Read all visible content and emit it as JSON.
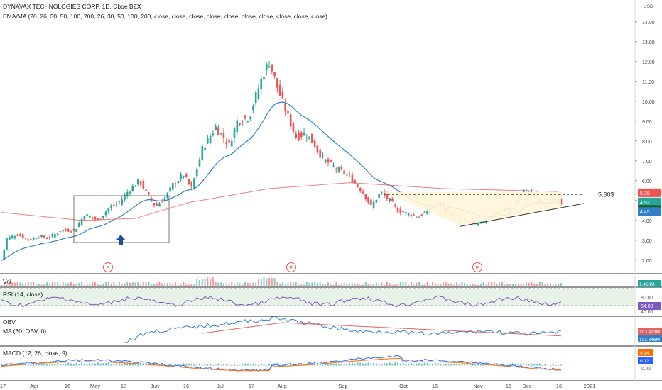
{
  "header": {
    "title": "DYNAVAX TECHNOLOGIES CORP, 1D, Cboe BZX",
    "indicator": "EMA/MA (20, 26, 30, 50, 100, 200, 26, 30, 50, 100, 200, close, close, close, close, close, close, close, close, close, close)",
    "currency": "USD"
  },
  "colors": {
    "up": "#26a69a",
    "down": "#ef5350",
    "ema": "#2f80c8",
    "ma200": "#e06262",
    "rsi": "#7e57c2",
    "macd": "#2962ff",
    "signal": "#ff6d00",
    "band": "#e8f3e8"
  },
  "chart_data": [
    {
      "type": "candlestick",
      "name": "price",
      "y_ticks": [
        "2.00",
        "3.00",
        "4.00",
        "5.00",
        "6.00",
        "7.00",
        "8.00",
        "9.00",
        "10.00",
        "11.00",
        "12.00",
        "13.00",
        "14.00"
      ],
      "ylim": [
        1.6,
        14.6
      ],
      "x_ticks": [
        "17",
        "Apr",
        "16",
        "May",
        "18",
        "Jun",
        "16",
        "Jul",
        "17",
        "Aug",
        "Sep",
        "Oct",
        "16",
        "Nov",
        "16",
        "Dec",
        "16",
        "2021"
      ],
      "price_labels": [
        {
          "text": "5.39",
          "value": 5.39,
          "color": "#ef5350"
        },
        {
          "text": "4.93",
          "value": 4.93,
          "color": "#26a69a"
        },
        {
          "text": "01:15:01",
          "value": 4.7,
          "color": "#1b5e20"
        },
        {
          "text": "4.45",
          "value": 4.45,
          "color": "#2f80c8"
        }
      ],
      "annotations": {
        "resistance_label": "5.30$",
        "resistance_value": 5.3,
        "earnings_marker": "E"
      },
      "ohlc_note": "Daily candles, approx values read from chart"
    },
    {
      "type": "bar",
      "name": "volume",
      "label": "Vol",
      "last_label": "1.468M"
    },
    {
      "type": "line",
      "name": "rsi",
      "label": "RSI (14, close)",
      "y_ticks": [
        "80.00",
        "40.00"
      ],
      "last_label": "54.09",
      "band": [
        40,
        80
      ]
    },
    {
      "type": "line",
      "name": "obv",
      "label": "OBV",
      "sub_label": "MA (30, OBV, 0)",
      "last_labels": [
        "103.423M",
        "102.846M"
      ]
    },
    {
      "type": "line",
      "name": "macd",
      "label": "MACD (12, 26, close, 9)",
      "last_labels": [
        "0.14",
        "0.12",
        "-0.02"
      ]
    }
  ]
}
